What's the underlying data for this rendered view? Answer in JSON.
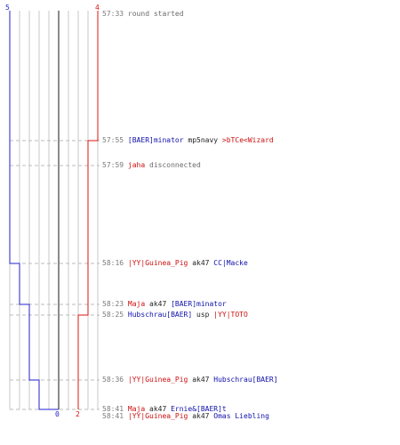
{
  "top_counters": {
    "blue": "5",
    "red": "4"
  },
  "bottom_counters": {
    "blue": "0",
    "red": "2"
  },
  "colors": {
    "blue": "#2222cc",
    "red": "#dd1111",
    "grid": "#c8c8c8"
  },
  "events": [
    {
      "time": "57:33",
      "text": "round started"
    },
    {
      "time": "57:55",
      "actor": "[BAER]minator",
      "weapon": "mp5navy",
      "victim": ">bTCe<Wizard"
    },
    {
      "time": "57:59",
      "actor": "jaha",
      "text": "disconnected"
    },
    {
      "time": "58:16",
      "actor": "|YY|Guinea_Pig",
      "weapon": "ak47",
      "victim": "CC|Macke"
    },
    {
      "time": "58:23",
      "actor": "Maja",
      "weapon": "ak47",
      "victim": "[BAER]minator"
    },
    {
      "time": "58:25",
      "actor": "Hubschrau[BAER]",
      "weapon": "usp",
      "victim": "|YY|TOTO"
    },
    {
      "time": "58:36",
      "actor": "|YY|Guinea_Pig",
      "weapon": "ak47",
      "victim": "Hubschrau[BAER]"
    },
    {
      "time": "58:41",
      "actor": "Maja",
      "weapon": "ak47",
      "victim": "Ernie&[BAER]t"
    },
    {
      "time": "58:41",
      "actor": "|YY|Guinea_Pig",
      "weapon": "ak47",
      "victim": "Omas Liebling"
    }
  ]
}
